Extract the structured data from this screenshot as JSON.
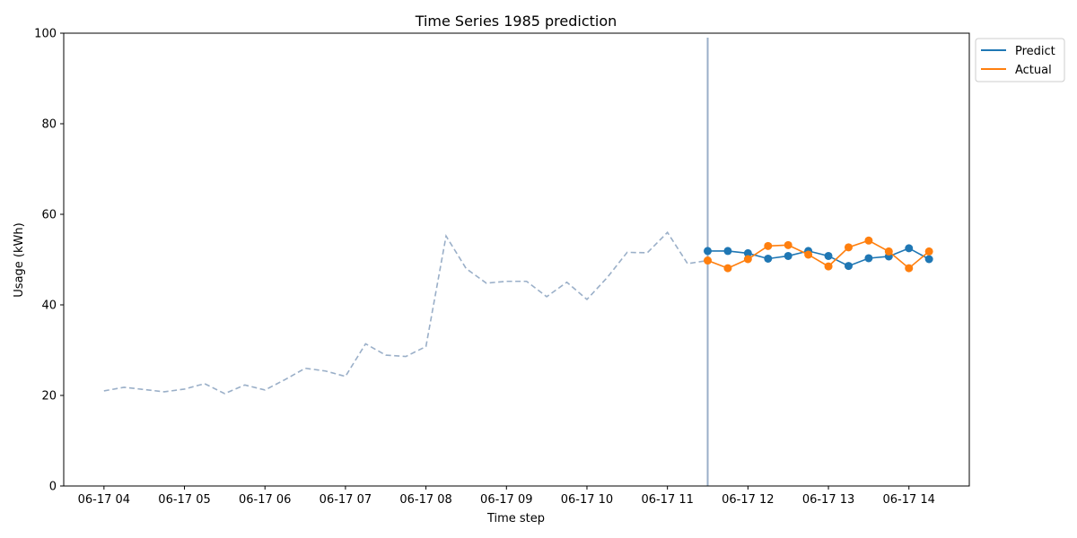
{
  "chart_data": {
    "type": "line",
    "title": "Time Series 1985 prediction",
    "xlabel": "Time step",
    "ylabel": "Usage (kWh)",
    "ylim": [
      0,
      100
    ],
    "xlim": [
      "06-17 03:30",
      "06-17 14:45"
    ],
    "yticks": [
      0,
      20,
      40,
      60,
      80,
      100
    ],
    "xticks": [
      "06-17 04",
      "06-17 05",
      "06-17 06",
      "06-17 07",
      "06-17 08",
      "06-17 09",
      "06-17 10",
      "06-17 11",
      "06-17 12",
      "06-17 13",
      "06-17 14"
    ],
    "grid": false,
    "legend_position": "outside-top-right",
    "forecast_start": "06-17 11:30",
    "history": {
      "color": "#9aafc8",
      "style": "dashed",
      "x": [
        "06-17 04:00",
        "06-17 04:15",
        "06-17 04:30",
        "06-17 04:45",
        "06-17 05:00",
        "06-17 05:15",
        "06-17 05:30",
        "06-17 05:45",
        "06-17 06:00",
        "06-17 06:15",
        "06-17 06:30",
        "06-17 06:45",
        "06-17 07:00",
        "06-17 07:15",
        "06-17 07:30",
        "06-17 07:45",
        "06-17 08:00",
        "06-17 08:15",
        "06-17 08:30",
        "06-17 08:45",
        "06-17 09:00",
        "06-17 09:15",
        "06-17 09:30",
        "06-17 09:45",
        "06-17 10:00",
        "06-17 10:15",
        "06-17 10:30",
        "06-17 10:45",
        "06-17 11:00",
        "06-17 11:15",
        "06-17 11:30"
      ],
      "values": [
        21.0,
        21.8,
        21.3,
        20.8,
        21.4,
        22.6,
        20.4,
        22.3,
        21.2,
        23.5,
        26.0,
        25.4,
        24.2,
        31.4,
        28.9,
        28.6,
        30.8,
        55.2,
        48.0,
        44.8,
        45.2,
        45.2,
        41.8,
        45.0,
        41.2,
        46.0,
        51.6,
        51.5,
        56.0,
        49.1,
        49.8
      ]
    },
    "series": [
      {
        "name": "Predict",
        "color": "#1f77b4",
        "x": [
          "06-17 11:30",
          "06-17 11:45",
          "06-17 12:00",
          "06-17 12:15",
          "06-17 12:30",
          "06-17 12:45",
          "06-17 13:00",
          "06-17 13:15",
          "06-17 13:30",
          "06-17 13:45",
          "06-17 14:00",
          "06-17 14:15"
        ],
        "values": [
          51.9,
          51.9,
          51.4,
          50.2,
          50.8,
          51.9,
          50.8,
          48.6,
          50.3,
          50.7,
          52.5,
          50.1
        ]
      },
      {
        "name": "Actual",
        "color": "#ff7f0e",
        "x": [
          "06-17 11:30",
          "06-17 11:45",
          "06-17 12:00",
          "06-17 12:15",
          "06-17 12:30",
          "06-17 12:45",
          "06-17 13:00",
          "06-17 13:15",
          "06-17 13:30",
          "06-17 13:45",
          "06-17 14:00",
          "06-17 14:15"
        ],
        "values": [
          49.8,
          48.1,
          50.1,
          53.0,
          53.2,
          51.1,
          48.5,
          52.7,
          54.2,
          51.8,
          48.1,
          51.8
        ]
      }
    ],
    "vline_color": "#9aafc8"
  }
}
